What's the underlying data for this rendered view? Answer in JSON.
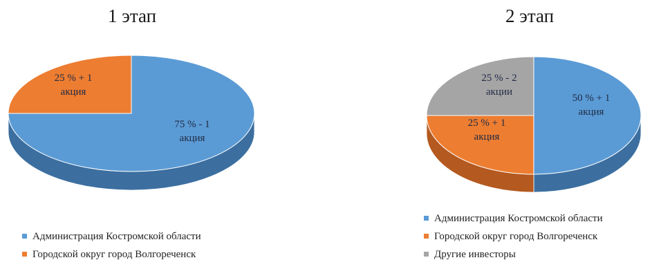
{
  "colors": {
    "admin": "#5b9bd5",
    "admin_dark": "#3c6fa0",
    "volgo": "#ed7d31",
    "volgo_dark": "#b4591f",
    "others": "#a5a5a5",
    "others_dark": "#7a7a7a"
  },
  "chart_data": [
    {
      "type": "pie",
      "title": "1 этап",
      "three_d": true,
      "slices": [
        {
          "name": "Администрация Костромской области",
          "value": 75,
          "label_line1": "75 % - 1",
          "label_line2": "акция",
          "color_key": "admin"
        },
        {
          "name": "Городской округ город Волгореченск",
          "value": 25,
          "label_line1": "25 % + 1",
          "label_line2": "акция",
          "color_key": "volgo"
        }
      ],
      "legend": [
        "Администрация Костромской области",
        "Городской округ город Волгореченск"
      ],
      "legend_position": "bottom"
    },
    {
      "type": "pie",
      "title": "2 этап",
      "three_d": true,
      "slices": [
        {
          "name": "Администрация Костромской области",
          "value": 50,
          "label_line1": "50 % + 1",
          "label_line2": "акция",
          "color_key": "admin"
        },
        {
          "name": "Городской округ город Волгореченск",
          "value": 25,
          "label_line1": "25 % + 1",
          "label_line2": "акция",
          "color_key": "volgo"
        },
        {
          "name": "Другие инвесторы",
          "value": 25,
          "label_line1": "25 % - 2",
          "label_line2": "акции",
          "color_key": "others"
        }
      ],
      "legend": [
        "Администрация Костромской области",
        "Городской округ город Волгореченск",
        "Другие инвесторы"
      ],
      "legend_position": "bottom"
    }
  ]
}
